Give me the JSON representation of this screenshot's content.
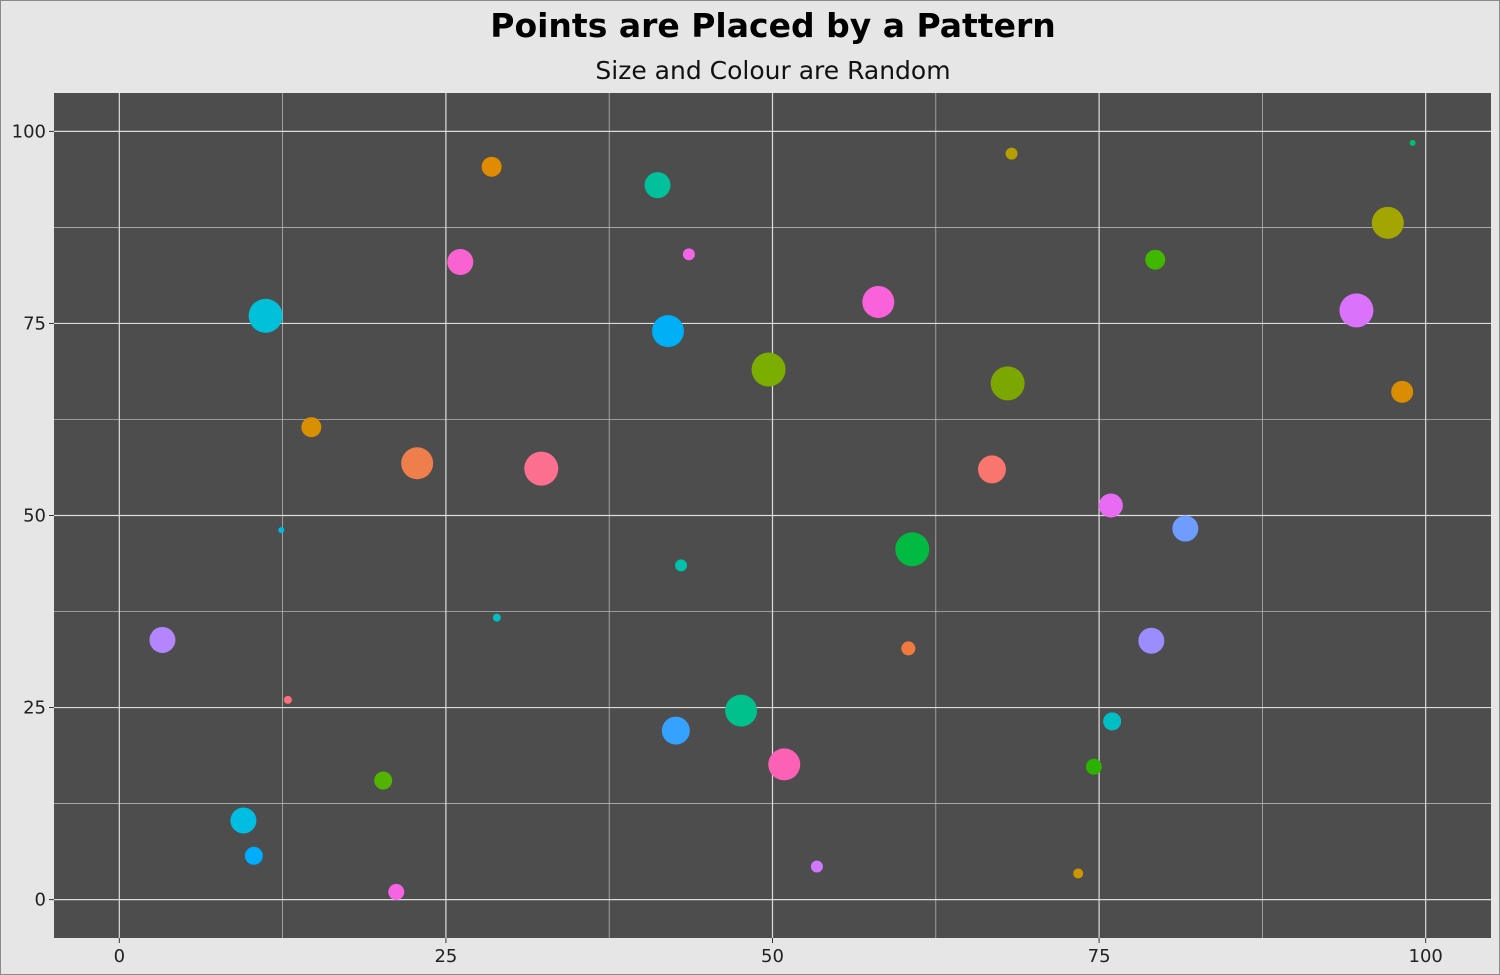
{
  "chart_data": {
    "type": "scatter",
    "title": "Points are Placed by a Pattern",
    "subtitle": "Size and Colour are Random",
    "xlabel": "",
    "ylabel": "",
    "xlim": [
      -5,
      105
    ],
    "ylim": [
      -5,
      105
    ],
    "x_ticks": [
      0,
      25,
      50,
      75,
      100
    ],
    "y_ticks": [
      0,
      25,
      50,
      75,
      100
    ],
    "x_tick_labels": [
      "0",
      "25",
      "50",
      "75",
      "100"
    ],
    "y_tick_labels": [
      "0",
      "25",
      "50",
      "75",
      "100"
    ],
    "x_minor_ticks": [
      12.5,
      37.5,
      62.5,
      87.5
    ],
    "y_minor_ticks": [
      12.5,
      37.5,
      62.5,
      87.5
    ],
    "grid": true,
    "legend": "none",
    "colors": {
      "panel": "#4d4d4d",
      "grid_major": "#dcdcdc",
      "grid_minor": "#b3b3b3",
      "background": "#e6e6e6"
    },
    "points": [
      {
        "x": 3.3,
        "y": 33.8,
        "size": 13,
        "color": "#b386ff"
      },
      {
        "x": 9.5,
        "y": 10.3,
        "size": 13,
        "color": "#00bde2"
      },
      {
        "x": 10.3,
        "y": 5.7,
        "size": 9,
        "color": "#00acfc"
      },
      {
        "x": 11.2,
        "y": 76.0,
        "size": 17,
        "color": "#00c1d9"
      },
      {
        "x": 12.4,
        "y": 48.1,
        "size": 3,
        "color": "#00b8e7"
      },
      {
        "x": 12.9,
        "y": 26.0,
        "size": 4,
        "color": "#fc7177"
      },
      {
        "x": 14.7,
        "y": 61.5,
        "size": 10,
        "color": "#d89000"
      },
      {
        "x": 20.2,
        "y": 15.5,
        "size": 9,
        "color": "#53b400"
      },
      {
        "x": 21.2,
        "y": 1.0,
        "size": 8,
        "color": "#f664e3"
      },
      {
        "x": 22.8,
        "y": 56.8,
        "size": 16,
        "color": "#ee7e4c"
      },
      {
        "x": 26.1,
        "y": 83.0,
        "size": 13,
        "color": "#f962d1"
      },
      {
        "x": 28.5,
        "y": 95.4,
        "size": 10,
        "color": "#e08b00"
      },
      {
        "x": 28.9,
        "y": 36.7,
        "size": 4,
        "color": "#00bfc4"
      },
      {
        "x": 32.3,
        "y": 56.1,
        "size": 17,
        "color": "#fb6f8f"
      },
      {
        "x": 41.2,
        "y": 93.0,
        "size": 13,
        "color": "#00c19c"
      },
      {
        "x": 42.0,
        "y": 74.0,
        "size": 16,
        "color": "#00b0f6"
      },
      {
        "x": 42.6,
        "y": 22.0,
        "size": 14,
        "color": "#35a2ff"
      },
      {
        "x": 43.0,
        "y": 43.5,
        "size": 6,
        "color": "#00c1aa"
      },
      {
        "x": 43.6,
        "y": 84.0,
        "size": 6,
        "color": "#f365e6"
      },
      {
        "x": 47.6,
        "y": 24.6,
        "size": 16,
        "color": "#00c08b"
      },
      {
        "x": 49.7,
        "y": 69.0,
        "size": 17,
        "color": "#7cae00"
      },
      {
        "x": 50.9,
        "y": 17.6,
        "size": 16,
        "color": "#fc61b6"
      },
      {
        "x": 53.4,
        "y": 4.3,
        "size": 6,
        "color": "#d277ff"
      },
      {
        "x": 58.1,
        "y": 77.8,
        "size": 16,
        "color": "#fa62db"
      },
      {
        "x": 60.4,
        "y": 32.7,
        "size": 7,
        "color": "#f0793e"
      },
      {
        "x": 60.7,
        "y": 45.6,
        "size": 17,
        "color": "#00ba42"
      },
      {
        "x": 66.8,
        "y": 56.0,
        "size": 14,
        "color": "#f8766d"
      },
      {
        "x": 68.0,
        "y": 67.2,
        "size": 17,
        "color": "#7ba700"
      },
      {
        "x": 68.3,
        "y": 97.1,
        "size": 6,
        "color": "#b79f00"
      },
      {
        "x": 73.4,
        "y": 3.4,
        "size": 5,
        "color": "#cc9700"
      },
      {
        "x": 74.6,
        "y": 17.3,
        "size": 8,
        "color": "#2cb200"
      },
      {
        "x": 75.9,
        "y": 51.3,
        "size": 12,
        "color": "#e76bf3"
      },
      {
        "x": 76.0,
        "y": 23.2,
        "size": 9,
        "color": "#00bfc4"
      },
      {
        "x": 79.0,
        "y": 33.7,
        "size": 13,
        "color": "#9c8dff"
      },
      {
        "x": 79.3,
        "y": 83.3,
        "size": 10,
        "color": "#41b800"
      },
      {
        "x": 81.6,
        "y": 48.3,
        "size": 13,
        "color": "#6f9cff"
      },
      {
        "x": 94.7,
        "y": 76.7,
        "size": 17,
        "color": "#db72fb"
      },
      {
        "x": 97.1,
        "y": 88.1,
        "size": 16,
        "color": "#a3a500"
      },
      {
        "x": 98.2,
        "y": 66.1,
        "size": 11,
        "color": "#d98d00"
      },
      {
        "x": 99.0,
        "y": 98.5,
        "size": 3,
        "color": "#00bf6d"
      }
    ]
  }
}
